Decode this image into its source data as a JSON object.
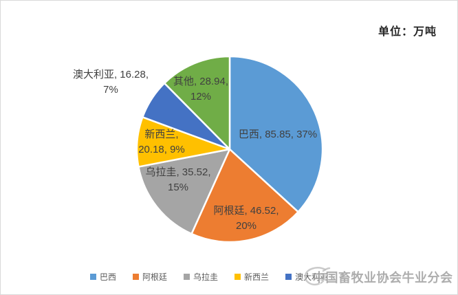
{
  "unit_label": "单位：万吨",
  "watermark_text": "中国畜牧业协会牛业分会",
  "colors": {
    "brazil": "#5B9BD5",
    "argentina": "#ED7D31",
    "uruguay": "#A5A5A5",
    "new_zealand": "#FFC000",
    "australia": "#4472C4",
    "other": "#70AD47",
    "label_text": "#404040",
    "legend_text": "#595959",
    "frame_border": "#D9D9D9"
  },
  "chart_data": {
    "type": "pie",
    "title": "",
    "unit": "万吨",
    "start_angle_deg": 0,
    "direction": "clockwise",
    "legend_position": "bottom",
    "slices": [
      {
        "name": "巴西",
        "value": 85.85,
        "pct": "37%",
        "color": "#5B9BD5",
        "label": "巴西, 85.85, 37%"
      },
      {
        "name": "阿根廷",
        "value": 46.52,
        "pct": "20%",
        "color": "#ED7D31",
        "label": "阿根廷, 46.52,\n20%"
      },
      {
        "name": "乌拉圭",
        "value": 35.52,
        "pct": "15%",
        "color": "#A5A5A5",
        "label": "乌拉圭, 35.52,\n15%"
      },
      {
        "name": "新西兰",
        "value": 20.18,
        "pct": "9%",
        "color": "#FFC000",
        "label": "新西兰,\n20.18, 9%"
      },
      {
        "name": "澳大利亚",
        "value": 16.28,
        "pct": "7%",
        "color": "#4472C4",
        "label": "澳大利亚, 16.28,\n7%"
      },
      {
        "name": "其他",
        "value": 28.94,
        "pct": "12%",
        "color": "#70AD47",
        "label": "其他, 28.94,\n12%"
      }
    ],
    "legend": [
      "巴西",
      "阿根廷",
      "乌拉圭",
      "新西兰",
      "澳大利亚"
    ]
  }
}
